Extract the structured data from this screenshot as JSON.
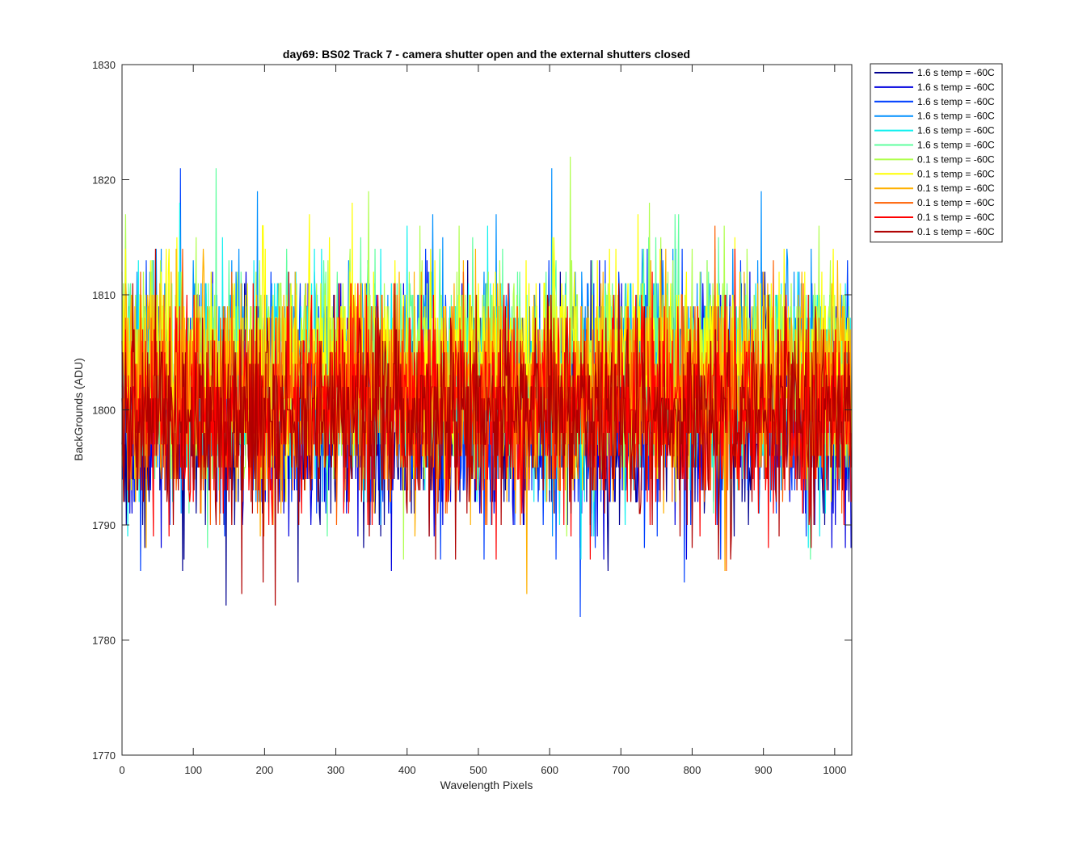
{
  "chart_data": {
    "type": "line",
    "title": "day69: BS02  Track 7 - camera shutter open and the external shutters closed",
    "xlabel": "Wavelength Pixels",
    "ylabel": "BackGrounds (ADU)",
    "xlim": [
      0,
      1024
    ],
    "ylim": [
      1770,
      1830
    ],
    "xticks": [
      0,
      100,
      200,
      300,
      400,
      500,
      600,
      700,
      800,
      900,
      1000
    ],
    "yticks": [
      1770,
      1780,
      1790,
      1800,
      1810,
      1820,
      1830
    ],
    "grid": false,
    "legend_position": "outside-top-right",
    "series": [
      {
        "name": "1.6 s temp = -60C",
        "color": "#00008f",
        "mean": 1799.5,
        "spread": 4.6
      },
      {
        "name": "1.6 s temp = -60C",
        "color": "#0000df",
        "mean": 1800.0,
        "spread": 4.6
      },
      {
        "name": "1.6 s temp = -60C",
        "color": "#0040ff",
        "mean": 1800.6,
        "spread": 4.6
      },
      {
        "name": "1.6 s temp = -60C",
        "color": "#0090ff",
        "mean": 1803.0,
        "spread": 4.7
      },
      {
        "name": "1.6 s temp = -60C",
        "color": "#10f0ef",
        "mean": 1802.0,
        "spread": 4.6
      },
      {
        "name": "1.6 s temp = -60C",
        "color": "#60ff9f",
        "mean": 1803.5,
        "spread": 4.5
      },
      {
        "name": "0.1 s temp = -60C",
        "color": "#b0ff4f",
        "mean": 1804.0,
        "spread": 4.5
      },
      {
        "name": "0.1 s temp = -60C",
        "color": "#ffff00",
        "mean": 1803.5,
        "spread": 4.4
      },
      {
        "name": "0.1 s temp = -60C",
        "color": "#ffb000",
        "mean": 1802.0,
        "spread": 4.4
      },
      {
        "name": "0.1 s temp = -60C",
        "color": "#ff6000",
        "mean": 1800.5,
        "spread": 4.3
      },
      {
        "name": "0.1 s temp = -60C",
        "color": "#ff0000",
        "mean": 1800.0,
        "spread": 4.3
      },
      {
        "name": "0.1 s temp = -60C",
        "color": "#b00000",
        "mean": 1799.5,
        "spread": 4.3
      }
    ],
    "points_per_series": 1024
  }
}
